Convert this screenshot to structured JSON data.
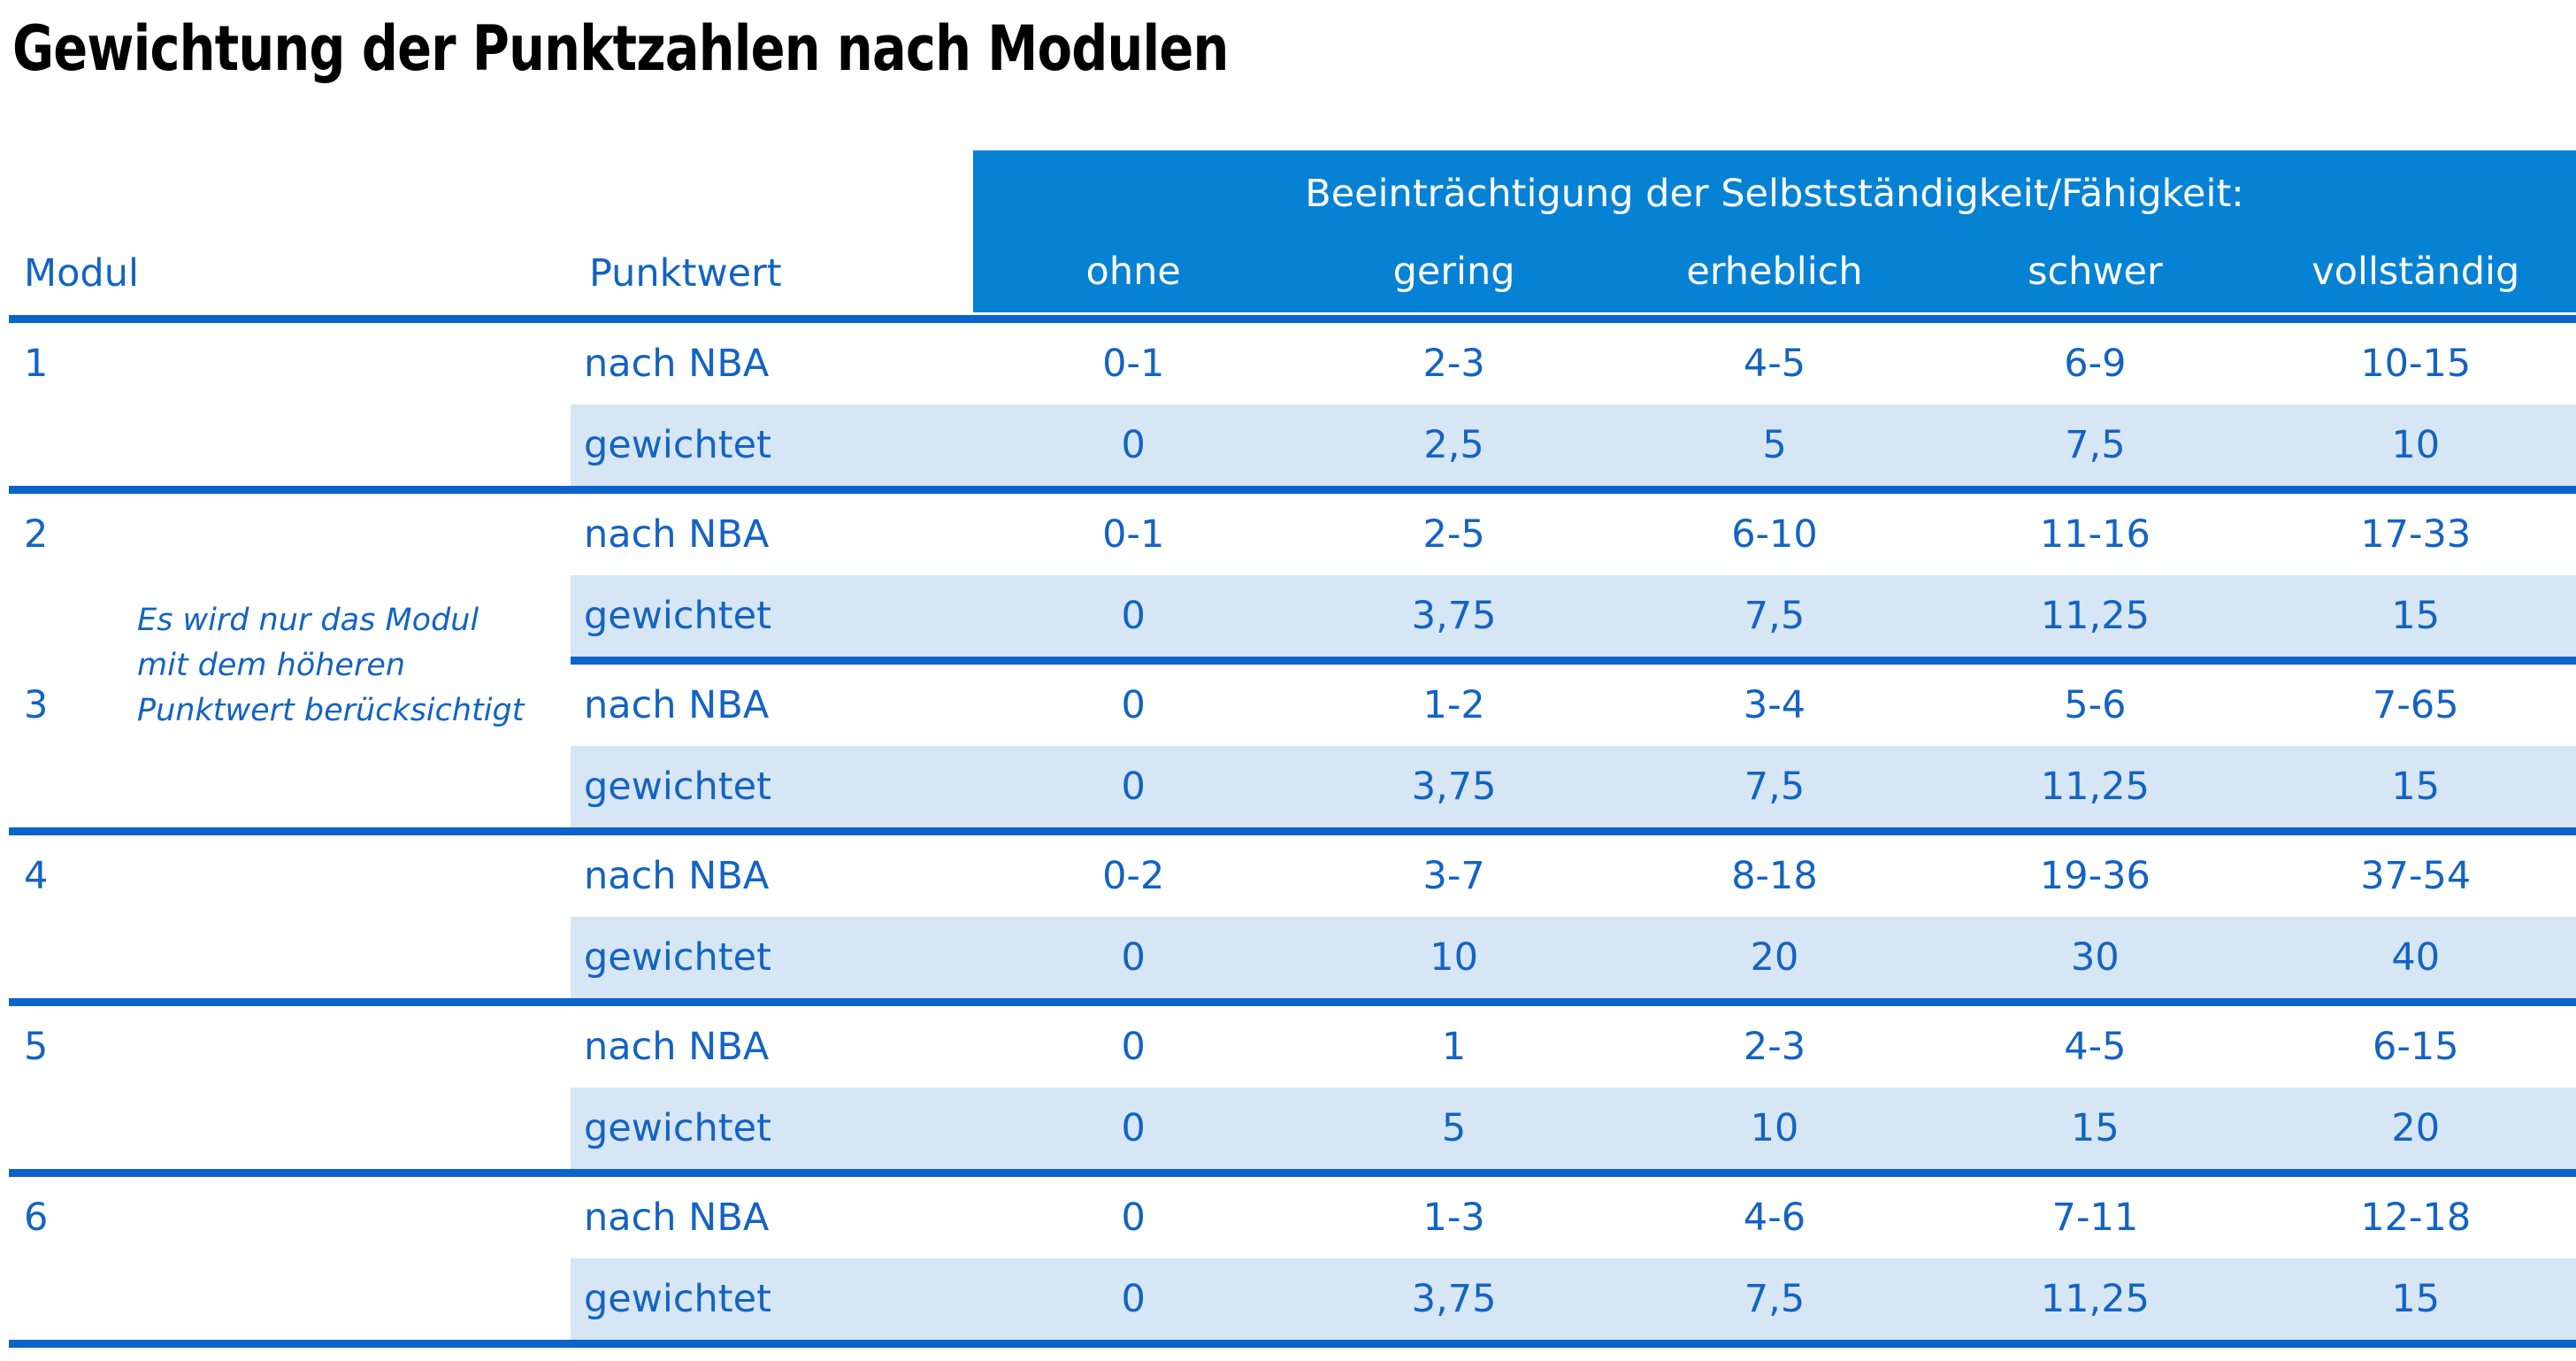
{
  "title": "Gewichtung der Punktzahlen nach Modulen",
  "table": {
    "group_header": "Beeinträchtigung der Selbstständigkeit/Fähigkeit:",
    "col_modul": "Modul",
    "col_punktwert": "Punktwert",
    "severity_levels": [
      "ohne",
      "gering",
      "erheblich",
      "schwer",
      "vollständig"
    ],
    "labels": {
      "nba": "nach NBA",
      "weighted": "gewichtet"
    },
    "note": [
      "Es wird nur das Modul",
      "mit dem höheren",
      "Punktwert berücksichtigt"
    ],
    "modules": [
      {
        "id": "1",
        "nba": [
          "0-1",
          "2-3",
          "4-5",
          "6-9",
          "10-15"
        ],
        "weighted": [
          "0",
          "2,5",
          "5",
          "7,5",
          "10"
        ]
      },
      {
        "id": "2",
        "nba": [
          "0-1",
          "2-5",
          "6-10",
          "11-16",
          "17-33"
        ],
        "weighted": [
          "0",
          "3,75",
          "7,5",
          "11,25",
          "15"
        ]
      },
      {
        "id": "3",
        "nba": [
          "0",
          "1-2",
          "3-4",
          "5-6",
          "7-65"
        ],
        "weighted": [
          "0",
          "3,75",
          "7,5",
          "11,25",
          "15"
        ]
      },
      {
        "id": "4",
        "nba": [
          "0-2",
          "3-7",
          "8-18",
          "19-36",
          "37-54"
        ],
        "weighted": [
          "0",
          "10",
          "20",
          "30",
          "40"
        ]
      },
      {
        "id": "5",
        "nba": [
          "0",
          "1",
          "2-3",
          "4-5",
          "6-15"
        ],
        "weighted": [
          "0",
          "5",
          "10",
          "15",
          "20"
        ]
      },
      {
        "id": "6",
        "nba": [
          "0",
          "1-3",
          "4-6",
          "7-11",
          "12-18"
        ],
        "weighted": [
          "0",
          "3,75",
          "7,5",
          "11,25",
          "15"
        ]
      }
    ]
  },
  "colors": {
    "header_bg": "#0682D4",
    "weighted_row_bg": "#D6E6F4",
    "rule_blue": "#0B63CC",
    "text_blue": "#1363C4",
    "title_color": "#000000",
    "page_bg": "#FFFFFF"
  }
}
